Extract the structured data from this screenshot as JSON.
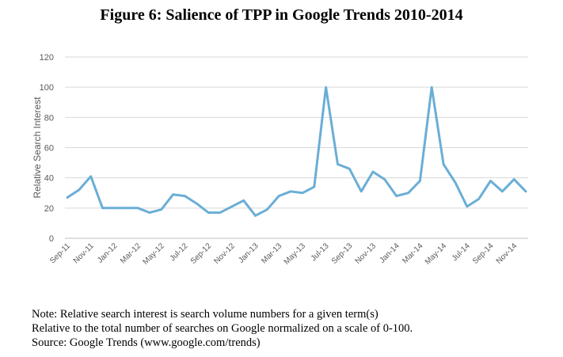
{
  "chart_data": {
    "type": "line",
    "title": "Figure 6: Salience of TPP in Google Trends 2010-2014",
    "xlabel": "",
    "ylabel": "Relative Search Interest",
    "ylim": [
      0,
      120
    ],
    "yticks": [
      0,
      20,
      40,
      60,
      80,
      100,
      120
    ],
    "grid": true,
    "x": [
      "Sep-11",
      "Oct-11",
      "Nov-11",
      "Dec-11",
      "Jan-12",
      "Feb-12",
      "Mar-12",
      "Apr-12",
      "May-12",
      "Jun-12",
      "Jul-12",
      "Aug-12",
      "Sep-12",
      "Oct-12",
      "Nov-12",
      "Dec-12",
      "Jan-13",
      "Feb-13",
      "Mar-13",
      "Apr-13",
      "May-13",
      "Jun-13",
      "Jul-13",
      "Aug-13",
      "Sep-13",
      "Oct-13",
      "Nov-13",
      "Dec-13",
      "Jan-14",
      "Feb-14",
      "Mar-14",
      "Apr-14",
      "May-14",
      "Jun-14",
      "Jul-14",
      "Aug-14",
      "Sep-14",
      "Oct-14",
      "Nov-14",
      "Dec-14"
    ],
    "tick_labels": [
      "Sep-11",
      "Nov-11",
      "Jan-12",
      "Mar-12",
      "May-12",
      "Jul-12",
      "Sep-12",
      "Nov-12",
      "Jan-13",
      "Mar-13",
      "May-13",
      "Jul-13",
      "Sep-13",
      "Nov-13",
      "Jan-14",
      "Mar-14",
      "May-14",
      "Jul-14",
      "Sep-14",
      "Nov-14"
    ],
    "series": [
      {
        "name": "TPP",
        "color": "#6aaed6",
        "values": [
          27,
          32,
          41,
          20,
          20,
          20,
          20,
          17,
          19,
          29,
          28,
          23,
          17,
          17,
          21,
          25,
          15,
          19,
          28,
          31,
          30,
          34,
          100,
          49,
          46,
          31,
          44,
          39,
          28,
          30,
          38,
          100,
          49,
          37,
          21,
          26,
          38,
          31,
          39,
          31
        ]
      }
    ]
  },
  "notes": {
    "line1": "Note: Relative search interest is search volume numbers for a given term(s)",
    "line2": "Relative to the total number of searches on Google normalized on a scale of 0-100.",
    "line3": "Source: Google Trends (www.google.com/trends)"
  }
}
